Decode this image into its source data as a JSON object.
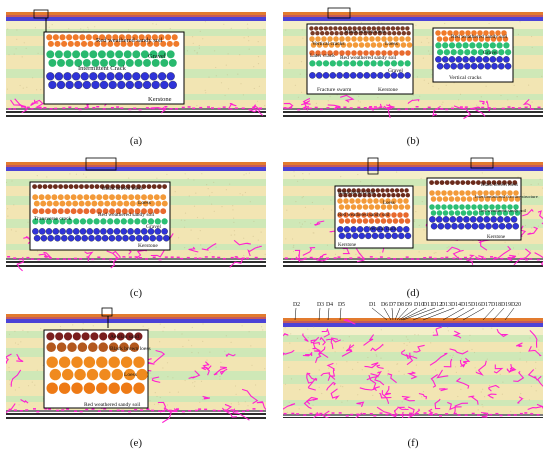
{
  "panels": [
    {
      "id": "a",
      "caption": "(a)",
      "callout_labels": [
        "Red weathered sandy soil",
        "Gravel",
        "Intermittent Crack",
        "Kerstone"
      ]
    },
    {
      "id": "b",
      "caption": "(b)",
      "callout_labels": [
        "Black brown loess",
        "Vertical cracks",
        "Loess",
        "Later crack",
        "Red weathered sandy soil",
        "Gravel",
        "Fracture swarm",
        "Kerstone",
        "Red weathered sandy soil",
        "Gravel",
        "Vertical cracks"
      ]
    },
    {
      "id": "c",
      "caption": "(c)",
      "callout_labels": [
        "Black brown loess",
        "Loess",
        "Red weathered sandy soil",
        "Transverse crack",
        "Gravel",
        "Kerstone"
      ]
    },
    {
      "id": "d",
      "caption": "(d)",
      "callout_labels": [
        "Black brown loess",
        "Loess",
        "Red weathered sandy soil",
        "Vertical crack",
        "Kerstone",
        "Black brown loess",
        "Interformational fracture structure",
        "Red weathered sandy soil",
        "Kerstone"
      ]
    },
    {
      "id": "e",
      "caption": "(e)",
      "callout_labels": [
        "Aeolian sand",
        "Black brown loess",
        "Loess",
        "Red weathered sandy soil"
      ]
    },
    {
      "id": "f",
      "caption": "(f)",
      "top_labels": [
        "D2",
        "D3",
        "D4",
        "D5",
        "D1",
        "D6",
        "D7",
        "D8",
        "D9",
        "D10",
        "D11",
        "D12",
        "D13",
        "D14",
        "D15",
        "D16",
        "D17",
        "D18",
        "D19",
        "D20"
      ]
    }
  ],
  "colors": {
    "aeolian": "#e27b2e",
    "loess": "#f2e5b3",
    "stratum_blue": "#4c43d6",
    "stratum_green": "#cfe8b7",
    "stratum_cream": "#f4eec8",
    "crack": "#ff22d0",
    "base_dark": "#2d2d2d"
  }
}
